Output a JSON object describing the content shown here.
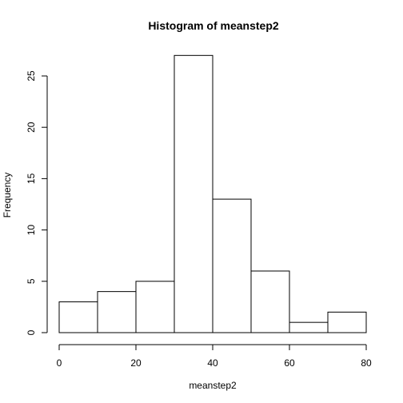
{
  "chart_data": {
    "type": "bar",
    "title": "Histogram of meanstep2",
    "xlabel": "meanstep2",
    "ylabel": "Frequency",
    "bins": [
      {
        "start": 0,
        "end": 10,
        "count": 3
      },
      {
        "start": 10,
        "end": 20,
        "count": 4
      },
      {
        "start": 20,
        "end": 30,
        "count": 5
      },
      {
        "start": 30,
        "end": 40,
        "count": 27
      },
      {
        "start": 40,
        "end": 50,
        "count": 13
      },
      {
        "start": 50,
        "end": 60,
        "count": 6
      },
      {
        "start": 60,
        "end": 70,
        "count": 1
      },
      {
        "start": 70,
        "end": 80,
        "count": 2
      }
    ],
    "xlim": [
      0,
      80
    ],
    "ylim": [
      0,
      27
    ],
    "x_ticks": [
      0,
      20,
      40,
      60,
      80
    ],
    "y_ticks": [
      0,
      5,
      10,
      15,
      20,
      25
    ],
    "grid": false
  }
}
